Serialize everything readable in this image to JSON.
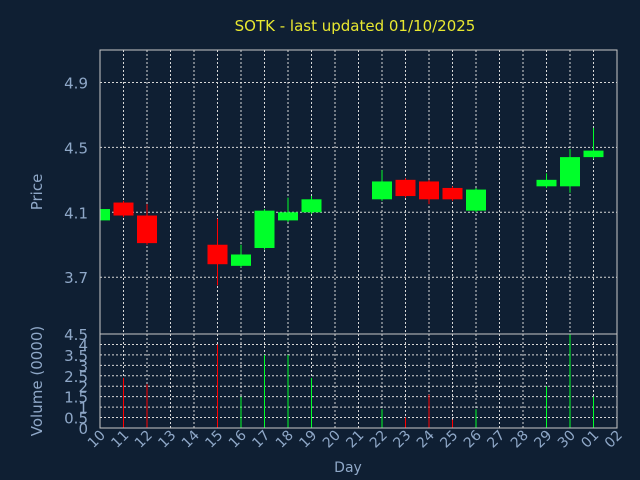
{
  "colors": {
    "background": "#0f1f33",
    "title": "#e8e830",
    "axis_text": "#8fa8c8",
    "grid": "#d8d8d8",
    "frame": "#c8c8c8",
    "up": "#00ff2a",
    "down": "#ff0000"
  },
  "chart_data": [
    {
      "type": "candlestick",
      "title": "SOTK - last updated 01/10/2025",
      "ylabel": "Price",
      "ylim": [
        3.35,
        5.1
      ],
      "yticks": [
        "3.7",
        "4.1",
        "4.5",
        "4.9"
      ],
      "grid": true,
      "candles": [
        {
          "day": "10",
          "open": 4.05,
          "close": 4.12,
          "high": 4.13,
          "low": 4.04
        },
        {
          "day": "11",
          "open": 4.16,
          "close": 4.08,
          "high": 4.17,
          "low": 4.07
        },
        {
          "day": "12",
          "open": 4.08,
          "close": 3.91,
          "high": 4.15,
          "low": 3.9
        },
        {
          "day": "15",
          "open": 3.9,
          "close": 3.78,
          "high": 4.06,
          "low": 3.65
        },
        {
          "day": "16",
          "open": 3.77,
          "close": 3.84,
          "high": 3.9,
          "low": 3.76
        },
        {
          "day": "17",
          "open": 3.88,
          "close": 4.11,
          "high": 4.12,
          "low": 3.87
        },
        {
          "day": "18",
          "open": 4.05,
          "close": 4.1,
          "high": 4.19,
          "low": 4.04
        },
        {
          "day": "19",
          "open": 4.1,
          "close": 4.18,
          "high": 4.2,
          "low": 4.09
        },
        {
          "day": "22",
          "open": 4.18,
          "close": 4.29,
          "high": 4.36,
          "low": 4.17
        },
        {
          "day": "23",
          "open": 4.3,
          "close": 4.2,
          "high": 4.31,
          "low": 4.19
        },
        {
          "day": "24",
          "open": 4.29,
          "close": 4.18,
          "high": 4.3,
          "low": 4.15
        },
        {
          "day": "25",
          "open": 4.25,
          "close": 4.18,
          "high": 4.26,
          "low": 4.17
        },
        {
          "day": "26",
          "open": 4.11,
          "close": 4.24,
          "high": 4.25,
          "low": 4.1
        },
        {
          "day": "29",
          "open": 4.26,
          "close": 4.3,
          "high": 4.34,
          "low": 4.25
        },
        {
          "day": "30",
          "open": 4.26,
          "close": 4.44,
          "high": 4.49,
          "low": 4.22
        },
        {
          "day": "01",
          "open": 4.44,
          "close": 4.48,
          "high": 4.62,
          "low": 4.43
        }
      ]
    },
    {
      "type": "bar",
      "ylabel": "Volume (0000)",
      "xlabel": "Day",
      "ylim": [
        0,
        4.5
      ],
      "yticks": [
        "0",
        "0.5",
        "1",
        "1.5",
        "2",
        "2.5",
        "3",
        "3.5",
        "4",
        "4.5"
      ],
      "categories": [
        "10",
        "11",
        "12",
        "13",
        "14",
        "15",
        "16",
        "17",
        "18",
        "19",
        "20",
        "21",
        "22",
        "23",
        "24",
        "25",
        "26",
        "27",
        "28",
        "29",
        "30",
        "01",
        "02"
      ],
      "volumes": [
        {
          "day": "10",
          "value": 0.3,
          "direction": "up"
        },
        {
          "day": "11",
          "value": 2.4,
          "direction": "down"
        },
        {
          "day": "12",
          "value": 2.1,
          "direction": "down"
        },
        {
          "day": "15",
          "value": 4.0,
          "direction": "down"
        },
        {
          "day": "16",
          "value": 1.5,
          "direction": "up"
        },
        {
          "day": "17",
          "value": 3.5,
          "direction": "up"
        },
        {
          "day": "18",
          "value": 3.5,
          "direction": "up"
        },
        {
          "day": "19",
          "value": 2.4,
          "direction": "up"
        },
        {
          "day": "22",
          "value": 0.9,
          "direction": "up"
        },
        {
          "day": "23",
          "value": 0.5,
          "direction": "down"
        },
        {
          "day": "24",
          "value": 1.6,
          "direction": "down"
        },
        {
          "day": "25",
          "value": 0.4,
          "direction": "down"
        },
        {
          "day": "26",
          "value": 0.9,
          "direction": "up"
        },
        {
          "day": "29",
          "value": 2.0,
          "direction": "up"
        },
        {
          "day": "30",
          "value": 4.5,
          "direction": "up"
        },
        {
          "day": "01",
          "value": 1.5,
          "direction": "up"
        }
      ]
    }
  ]
}
